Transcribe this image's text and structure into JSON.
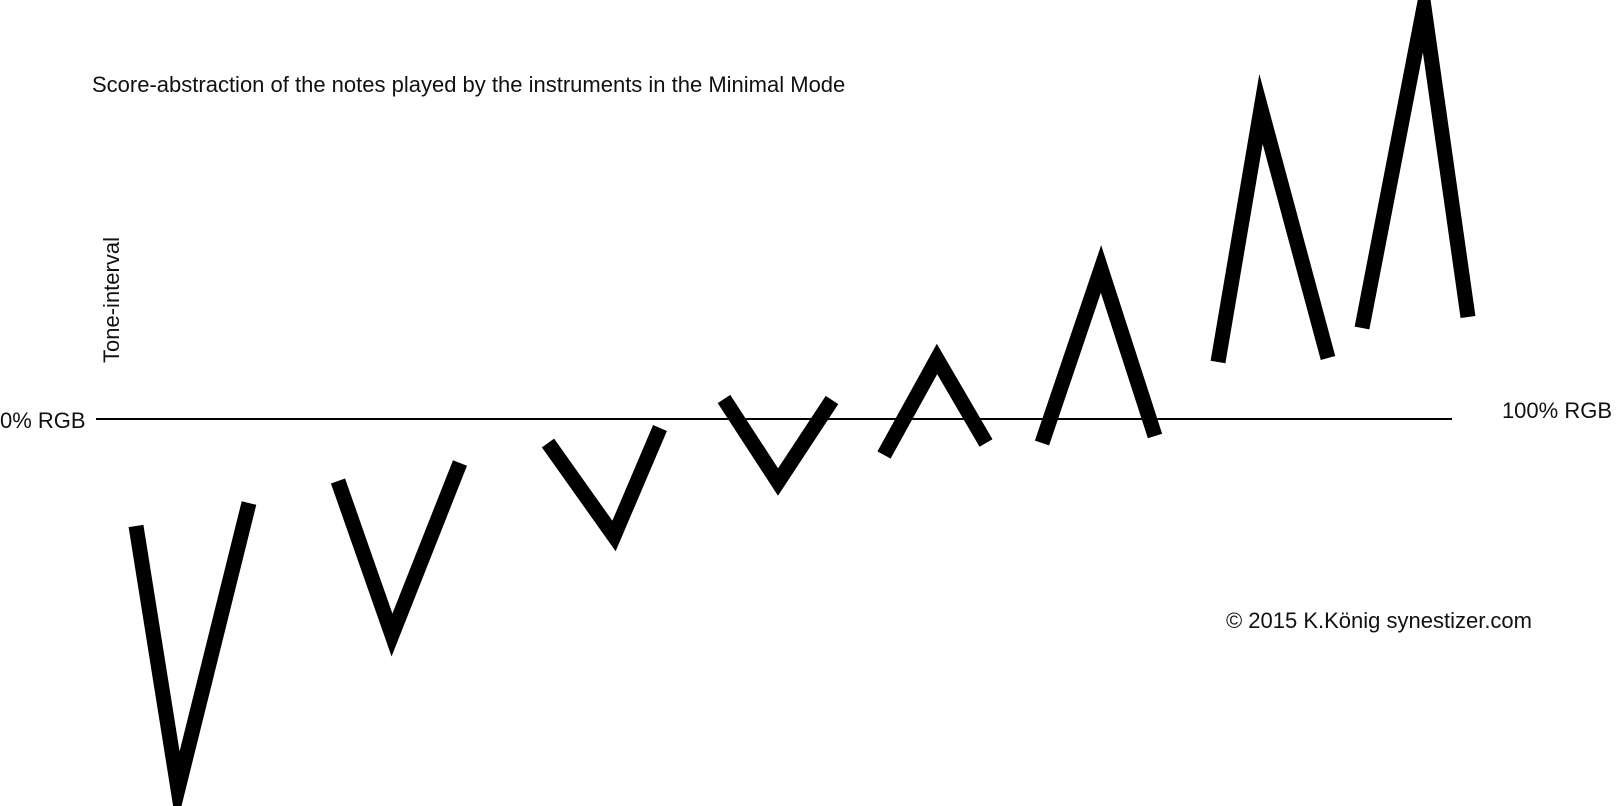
{
  "title": "Score-abstraction of the notes played by the instruments in the Minimal Mode",
  "axis": {
    "vertical_label": "Tone-interval",
    "left_label": "0% RGB",
    "right_label": "100% RGB"
  },
  "credit": "© 2015 K.König synestizer.com",
  "colors": {
    "stroke": "#000000",
    "baseline": "#000000",
    "background": "#ffffff"
  },
  "note_shapes": [
    {
      "kind": "v",
      "start": -107,
      "vertex": -370,
      "end": -84
    },
    {
      "kind": "v",
      "start": -62,
      "vertex": -216,
      "end": -44
    },
    {
      "kind": "v",
      "start": -24,
      "vertex": -117,
      "end": -9
    },
    {
      "kind": "v",
      "start": 20,
      "vertex": -63,
      "end": 19
    },
    {
      "kind": "peak",
      "start": -36,
      "vertex": 60,
      "end": -24
    },
    {
      "kind": "peak",
      "start": -24,
      "vertex": 150,
      "end": -17
    },
    {
      "kind": "peak",
      "start": 57,
      "vertex": 310,
      "end": 61
    },
    {
      "kind": "peak",
      "start": 91,
      "vertex": 412,
      "end": 102
    }
  ]
}
